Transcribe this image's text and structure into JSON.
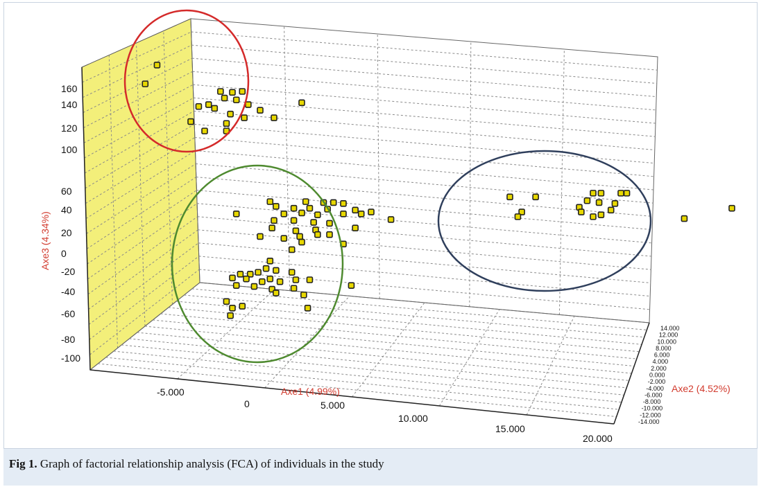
{
  "chart_data": {
    "type": "scatter",
    "title": "",
    "xlabel": "Axe1 (4.99%)",
    "ylabel": "Axe2 (4.52%)",
    "zlabel": "Axe3 (4.34%)",
    "x_ticks": [
      "-5.000",
      "0",
      "5.000",
      "10.000",
      "15.000",
      "20.000"
    ],
    "y_ticks": [
      "14.000",
      "12.000",
      "10.000",
      "8.000",
      "6.000",
      "4.000",
      "2.000",
      "0.000",
      "-2.000",
      "-4.000",
      "-6.000",
      "-8.000",
      "-10.000",
      "-12.000",
      "-14.000"
    ],
    "z_ticks": [
      "160",
      "140",
      "120",
      "100",
      "60",
      "40",
      "20",
      "0",
      "-20",
      "-40",
      "-60",
      "-80",
      "-100"
    ],
    "xlim": [
      -8000,
      20000
    ],
    "ylim": [
      -14000,
      14000
    ],
    "zlim": [
      -100,
      180
    ],
    "grid": true,
    "colors": {
      "point_fill": "#e8d800",
      "point_edge": "#222222",
      "left_wall": "#f3ef7a",
      "cluster_red": "#d42a2a",
      "cluster_green": "#4e8a2f",
      "cluster_navy": "#2f3f5c",
      "axis_title": "#d23b2e"
    },
    "clusters": [
      {
        "color": "red",
        "points": [
          {
            "x": -6200,
            "z": 178
          },
          {
            "x": -6800,
            "z": 158
          },
          {
            "x": -3000,
            "z": 150
          },
          {
            "x": -2400,
            "z": 149
          },
          {
            "x": -1900,
            "z": 150
          },
          {
            "x": -2800,
            "z": 143
          },
          {
            "x": -2200,
            "z": 141
          },
          {
            "x": -4100,
            "z": 134
          },
          {
            "x": -3600,
            "z": 136
          },
          {
            "x": -3300,
            "z": 132
          },
          {
            "x": -1600,
            "z": 136
          },
          {
            "x": 1100,
            "z": 138
          },
          {
            "x": -2500,
            "z": 126
          },
          {
            "x": -1000,
            "z": 130
          },
          {
            "x": -1800,
            "z": 122
          },
          {
            "x": -300,
            "z": 122
          },
          {
            "x": -4500,
            "z": 118
          },
          {
            "x": -2700,
            "z": 116
          },
          {
            "x": -3800,
            "z": 108
          },
          {
            "x": -2700,
            "z": 108
          }
        ]
      },
      {
        "color": "green",
        "points": [
          {
            "x": -500,
            "z": 33
          },
          {
            "x": 1300,
            "z": 33
          },
          {
            "x": 2200,
            "z": 32
          },
          {
            "x": 2700,
            "z": 32
          },
          {
            "x": 3200,
            "z": 31
          },
          {
            "x": -200,
            "z": 28
          },
          {
            "x": 700,
            "z": 26
          },
          {
            "x": 1500,
            "z": 26
          },
          {
            "x": 2400,
            "z": 25
          },
          {
            "x": 3800,
            "z": 24
          },
          {
            "x": -2200,
            "z": 20
          },
          {
            "x": 200,
            "z": 20
          },
          {
            "x": 1100,
            "z": 21
          },
          {
            "x": 1900,
            "z": 19
          },
          {
            "x": 3200,
            "z": 20
          },
          {
            "x": 4100,
            "z": 20
          },
          {
            "x": 4600,
            "z": 22
          },
          {
            "x": -300,
            "z": 13
          },
          {
            "x": 700,
            "z": 13
          },
          {
            "x": 1700,
            "z": 11
          },
          {
            "x": 2500,
            "z": 10
          },
          {
            "x": 5600,
            "z": 14
          },
          {
            "x": -400,
            "z": 5
          },
          {
            "x": 800,
            "z": 2
          },
          {
            "x": 1800,
            "z": 3
          },
          {
            "x": 3800,
            "z": 5
          },
          {
            "x": -1000,
            "z": -4
          },
          {
            "x": 200,
            "z": -6
          },
          {
            "x": 1000,
            "z": -4
          },
          {
            "x": 1900,
            "z": -2
          },
          {
            "x": 2500,
            "z": -2
          },
          {
            "x": 1100,
            "z": -10
          },
          {
            "x": 3200,
            "z": -12
          },
          {
            "x": 600,
            "z": -18
          },
          {
            "x": -500,
            "z": -30
          },
          {
            "x": -700,
            "z": -38
          },
          {
            "x": -200,
            "z": -40
          },
          {
            "x": -2000,
            "z": -44
          },
          {
            "x": -1500,
            "z": -44
          },
          {
            "x": -1100,
            "z": -42
          },
          {
            "x": 600,
            "z": -42
          },
          {
            "x": -2400,
            "z": -48
          },
          {
            "x": -1700,
            "z": -49
          },
          {
            "x": -500,
            "z": -49
          },
          {
            "x": -900,
            "z": -52
          },
          {
            "x": 0,
            "z": -52
          },
          {
            "x": 800,
            "z": -50
          },
          {
            "x": 1500,
            "z": -50
          },
          {
            "x": -2200,
            "z": -56
          },
          {
            "x": -1300,
            "z": -57
          },
          {
            "x": -400,
            "z": -60
          },
          {
            "x": 700,
            "z": -59
          },
          {
            "x": 3600,
            "z": -56
          },
          {
            "x": -200,
            "z": -64
          },
          {
            "x": 1200,
            "z": -66
          },
          {
            "x": -2700,
            "z": -73
          },
          {
            "x": -2400,
            "z": -80
          },
          {
            "x": -1900,
            "z": -78
          },
          {
            "x": -2500,
            "z": -88
          },
          {
            "x": 1400,
            "z": -80
          }
        ]
      },
      {
        "color": "navy",
        "points": [
          {
            "x": 11600,
            "z": 38
          },
          {
            "x": 12900,
            "z": 38
          },
          {
            "x": 15800,
            "z": 42
          },
          {
            "x": 16200,
            "z": 42
          },
          {
            "x": 17200,
            "z": 42
          },
          {
            "x": 17500,
            "z": 42
          },
          {
            "x": 15500,
            "z": 34
          },
          {
            "x": 16100,
            "z": 32
          },
          {
            "x": 16900,
            "z": 31
          },
          {
            "x": 15100,
            "z": 27
          },
          {
            "x": 16700,
            "z": 24
          },
          {
            "x": 12200,
            "z": 22
          },
          {
            "x": 15200,
            "z": 22
          },
          {
            "x": 16200,
            "z": 19
          },
          {
            "x": 12000,
            "z": 17
          },
          {
            "x": 15800,
            "z": 17
          },
          {
            "x": 20400,
            "z": 15
          },
          {
            "x": 22800,
            "z": 26
          }
        ]
      }
    ]
  },
  "caption": {
    "label": "Fig 1.",
    "text": " Graph of factorial relationship analysis (FCA) of individuals in the study"
  }
}
